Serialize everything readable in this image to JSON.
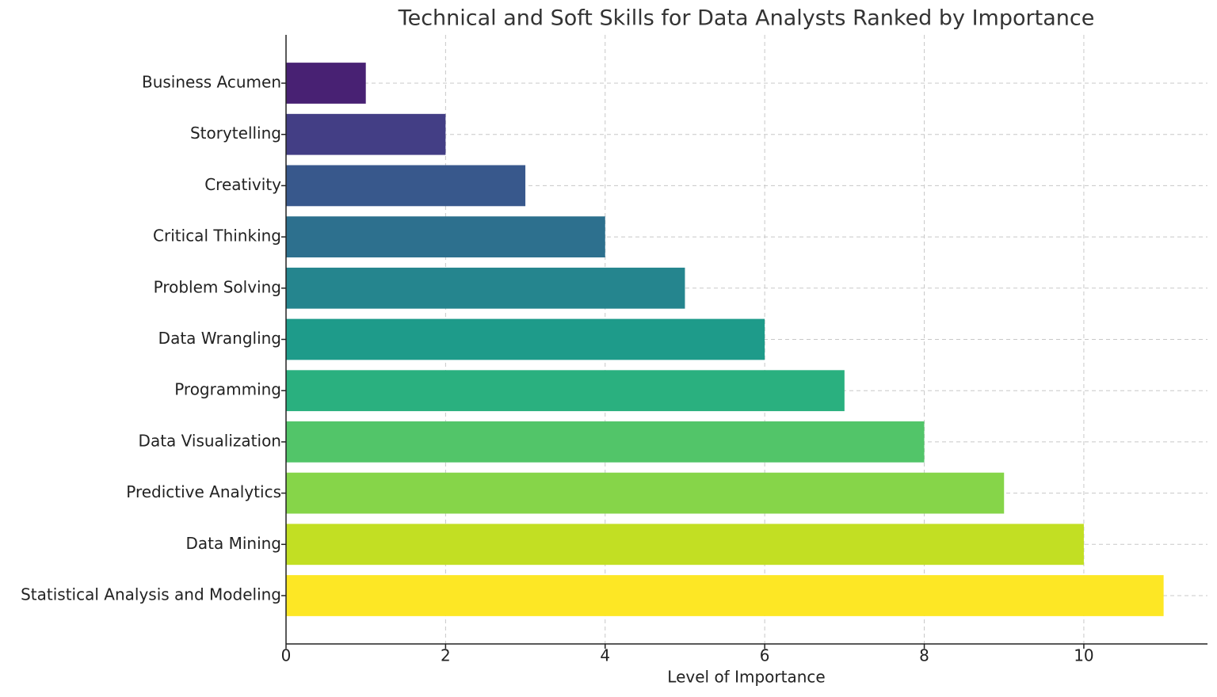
{
  "chart_data": {
    "type": "barh",
    "title": "Technical and Soft Skills for Data Analysts Ranked by Importance",
    "x_label": "Level of Importance",
    "categories": [
      "Business Acumen",
      "Storytelling",
      "Creativity",
      "Critical Thinking",
      "Problem Solving",
      "Data Wrangling",
      "Programming",
      "Data Visualization",
      "Predictive Analytics",
      "Data Mining",
      "Statistical Analysis and Modeling"
    ],
    "values": [
      1,
      2,
      3,
      4,
      5,
      6,
      7,
      8,
      9,
      10,
      11
    ],
    "colors": [
      "#482173",
      "#433e85",
      "#38588c",
      "#2d708e",
      "#25858e",
      "#1e9b8a",
      "#2ab07f",
      "#52c569",
      "#86d549",
      "#c2df23",
      "#fde725"
    ],
    "xlim": [
      0,
      11.55
    ],
    "xticks": [
      0,
      2,
      4,
      6,
      8,
      10
    ],
    "grid": true
  }
}
